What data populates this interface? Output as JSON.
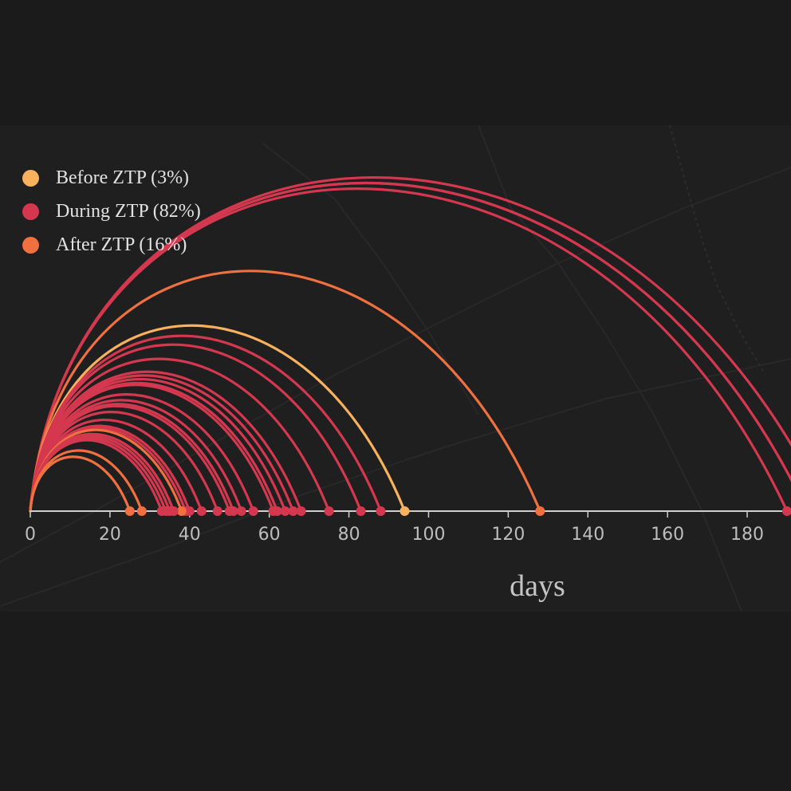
{
  "chart_data": {
    "type": "arc",
    "xlabel": "days",
    "xlim": [
      0,
      191
    ],
    "x_ticks": [
      "0",
      "20",
      "40",
      "60",
      "80",
      "100",
      "120",
      "140",
      "160",
      "180"
    ],
    "grid": false,
    "legend_position": "top-left",
    "series": [
      {
        "name": "Before ZTP (3%)",
        "color": "#f9b15e",
        "values": [
          94
        ]
      },
      {
        "name": "During ZTP (82%)",
        "color": "#d4384f",
        "values": [
          33,
          34,
          35,
          36,
          39,
          40,
          43,
          47,
          50,
          51,
          53,
          56,
          61,
          62,
          64,
          66,
          68,
          75,
          83,
          88,
          200,
          195,
          190,
          195
        ]
      },
      {
        "name": "After ZTP (16%)",
        "color": "#f0703f",
        "values": [
          25,
          28,
          38,
          128
        ]
      }
    ]
  }
}
